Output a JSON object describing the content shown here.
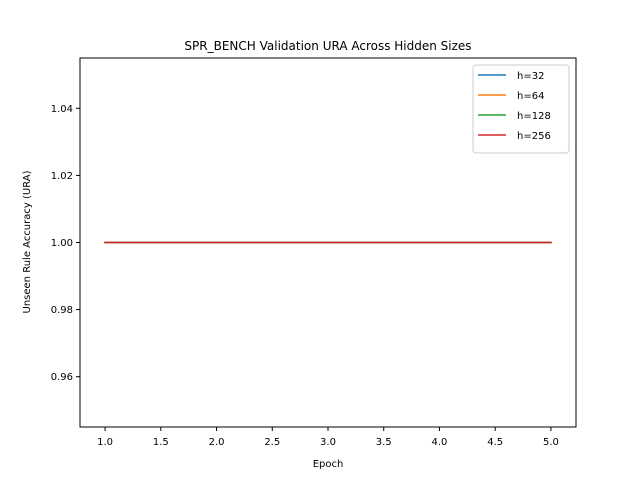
{
  "chart_data": {
    "type": "line",
    "title": "SPR_BENCH Validation URA Across Hidden Sizes",
    "xlabel": "Epoch",
    "ylabel": "Unseen Rule Accuracy (URA)",
    "xlim": [
      0.775,
      5.225
    ],
    "ylim": [
      0.945,
      1.055
    ],
    "x_ticks": [
      1.0,
      1.5,
      2.0,
      2.5,
      3.0,
      3.5,
      4.0,
      4.5,
      5.0
    ],
    "x_tick_labels": [
      "1.0",
      "1.5",
      "2.0",
      "2.5",
      "3.0",
      "3.5",
      "4.0",
      "4.5",
      "5.0"
    ],
    "y_ticks": [
      0.96,
      0.98,
      1.0,
      1.02,
      1.04
    ],
    "y_tick_labels": [
      "0.96",
      "0.98",
      "1.00",
      "1.02",
      "1.04"
    ],
    "grid": false,
    "legend_position": "top-right",
    "x": [
      1,
      2,
      3,
      4,
      5
    ],
    "series": [
      {
        "name": "h=32",
        "color": "#1f77b4",
        "values": [
          1.0,
          1.0,
          1.0,
          1.0,
          1.0
        ]
      },
      {
        "name": "h=64",
        "color": "#ff7f0e",
        "values": [
          1.0,
          1.0,
          1.0,
          1.0,
          1.0
        ]
      },
      {
        "name": "h=128",
        "color": "#2ca02c",
        "values": [
          1.0,
          1.0,
          1.0,
          1.0,
          1.0
        ]
      },
      {
        "name": "h=256",
        "color": "#d62728",
        "values": [
          1.0,
          1.0,
          1.0,
          1.0,
          1.0
        ]
      }
    ]
  }
}
